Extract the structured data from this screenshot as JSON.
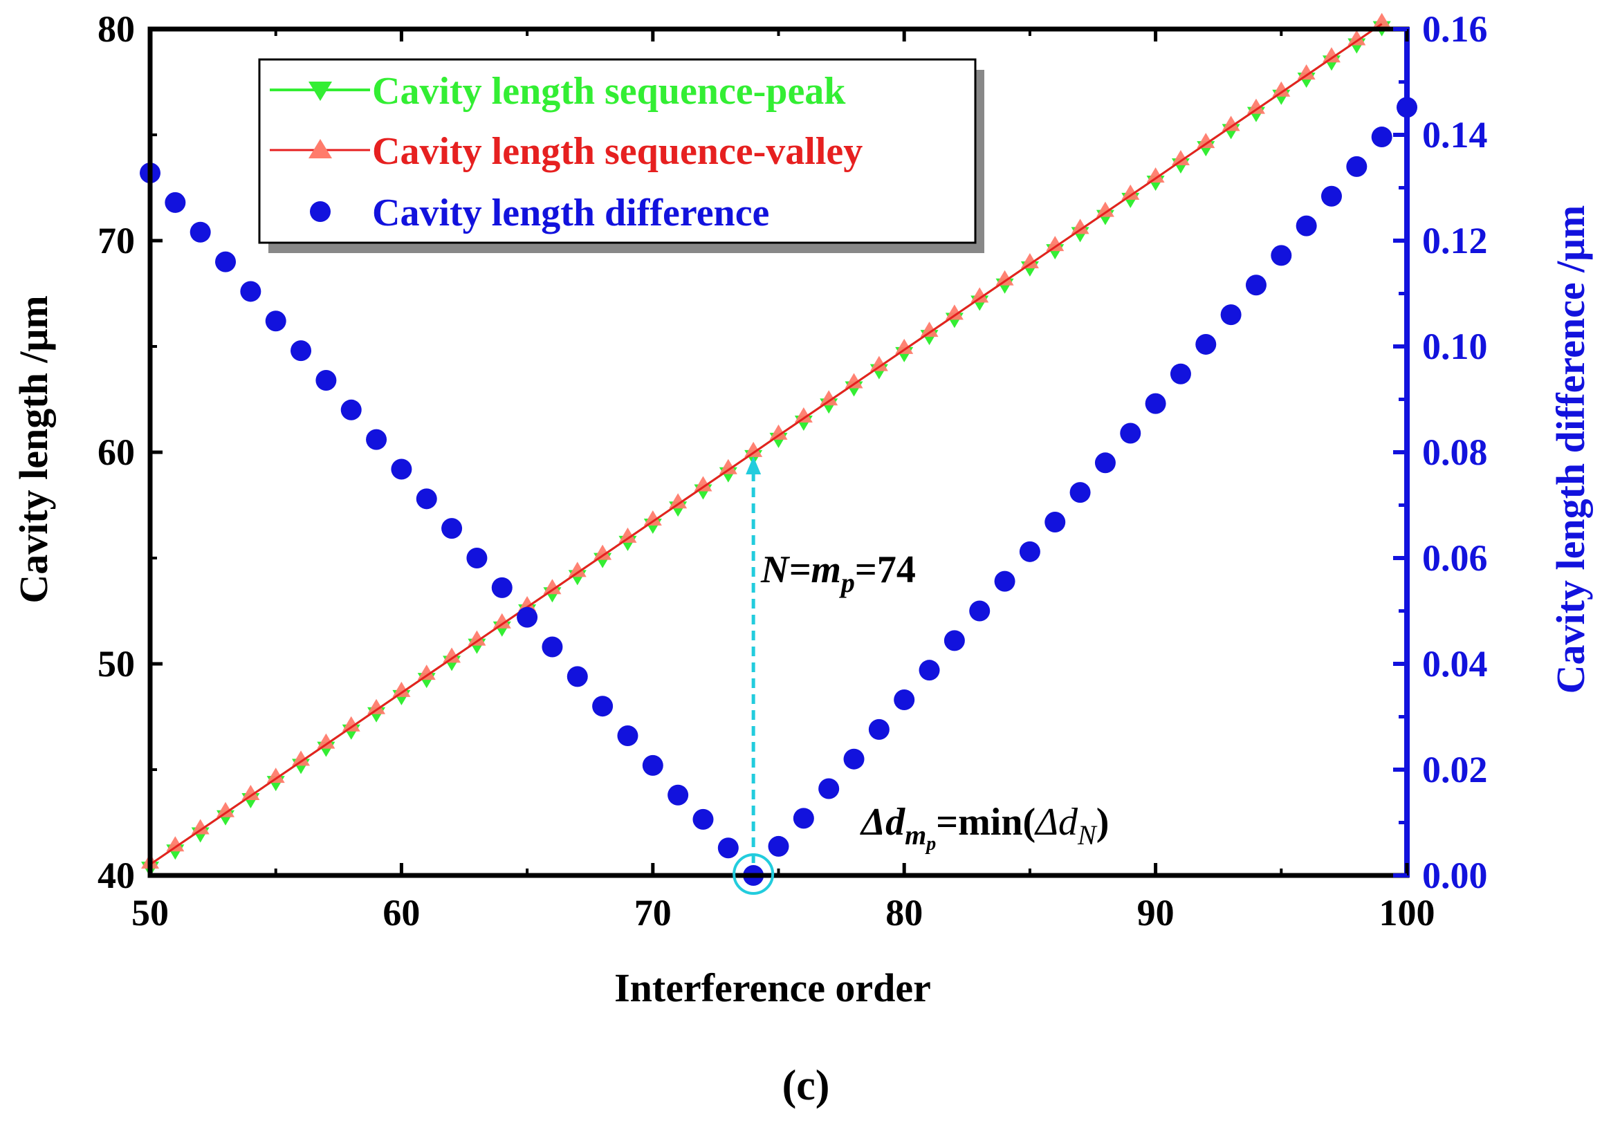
{
  "chart_data": {
    "type": "line",
    "xlabel": "Interference order",
    "ylabel": "Cavity length /μm",
    "y2label": "Cavity length difference /μm",
    "xlim": [
      50,
      100
    ],
    "ylim": [
      40,
      80
    ],
    "y2lim": [
      0,
      0.16
    ],
    "x_ticks": [
      "50",
      "60",
      "70",
      "80",
      "90",
      "100"
    ],
    "y_ticks": [
      "40",
      "50",
      "60",
      "70",
      "80"
    ],
    "y2_ticks": [
      "0.00",
      "0.02",
      "0.04",
      "0.06",
      "0.08",
      "0.10",
      "0.12",
      "0.14",
      "0.16"
    ],
    "legend_position": "top-left",
    "colors": {
      "peak": "#33ee33",
      "valley": "#e62020",
      "valley_marker": "#ff7b6b",
      "difference": "#1212dd",
      "right_axis": "#1212dd",
      "annotation": "#22ccdd"
    },
    "series": [
      {
        "name": "Cavity length sequence-peak",
        "axis": "left",
        "style": "line+down-triangle",
        "x": [
          50,
          51,
          52,
          53,
          54,
          55,
          56,
          57,
          58,
          59,
          60,
          61,
          62,
          63,
          64,
          65,
          66,
          67,
          68,
          69,
          70,
          71,
          72,
          73,
          74,
          75,
          76,
          77,
          78,
          79,
          80,
          81,
          82,
          83,
          84,
          85,
          86,
          87,
          88,
          89,
          90,
          91,
          92,
          93,
          94,
          95,
          96,
          97,
          98,
          99
        ],
        "values": [
          40.52,
          41.33,
          42.14,
          42.95,
          43.76,
          44.57,
          45.38,
          46.19,
          47.0,
          47.82,
          48.63,
          49.44,
          50.25,
          51.06,
          51.87,
          52.68,
          53.49,
          54.3,
          55.11,
          55.92,
          56.73,
          57.54,
          58.35,
          59.16,
          59.97,
          60.79,
          61.6,
          62.41,
          63.22,
          64.03,
          64.84,
          65.65,
          66.46,
          67.27,
          68.08,
          68.89,
          69.7,
          70.51,
          71.32,
          72.13,
          72.94,
          73.76,
          74.57,
          75.38,
          76.19,
          77.0,
          77.81,
          78.62,
          79.43,
          80.24
        ]
      },
      {
        "name": "Cavity length sequence-valley",
        "axis": "left",
        "style": "line+up-triangle",
        "x": [
          50,
          51,
          52,
          53,
          54,
          55,
          56,
          57,
          58,
          59,
          60,
          61,
          62,
          63,
          64,
          65,
          66,
          67,
          68,
          69,
          70,
          71,
          72,
          73,
          74,
          75,
          76,
          77,
          78,
          79,
          80,
          81,
          82,
          83,
          84,
          85,
          86,
          87,
          88,
          89,
          90,
          91,
          92,
          93,
          94,
          95,
          96,
          97,
          98,
          99
        ],
        "values": [
          40.52,
          41.33,
          42.14,
          42.95,
          43.76,
          44.57,
          45.38,
          46.19,
          47.0,
          47.82,
          48.63,
          49.44,
          50.25,
          51.06,
          51.87,
          52.68,
          53.49,
          54.3,
          55.11,
          55.92,
          56.73,
          57.54,
          58.35,
          59.16,
          59.97,
          60.79,
          61.6,
          62.41,
          63.22,
          64.03,
          64.84,
          65.65,
          66.46,
          67.27,
          68.08,
          68.89,
          69.7,
          70.51,
          71.32,
          72.13,
          72.94,
          73.76,
          74.57,
          75.38,
          76.19,
          77.0,
          77.81,
          78.62,
          79.43,
          80.24
        ]
      },
      {
        "name": "Cavity length difference",
        "axis": "right",
        "style": "circle",
        "x": [
          50,
          51,
          52,
          53,
          54,
          55,
          56,
          57,
          58,
          59,
          60,
          61,
          62,
          63,
          64,
          65,
          66,
          67,
          68,
          69,
          70,
          71,
          72,
          73,
          74,
          75,
          76,
          77,
          78,
          79,
          80,
          81,
          82,
          83,
          84,
          85,
          86,
          87,
          88,
          89,
          90,
          91,
          92,
          93,
          94,
          95,
          96,
          97,
          98,
          99,
          100
        ],
        "values": [
          0.1328,
          0.1272,
          0.1216,
          0.116,
          0.1104,
          0.1048,
          0.0992,
          0.0936,
          0.088,
          0.0824,
          0.0768,
          0.0712,
          0.0656,
          0.06,
          0.0544,
          0.0488,
          0.0432,
          0.0376,
          0.032,
          0.0264,
          0.0208,
          0.0152,
          0.0106,
          0.0052,
          0.0,
          0.0055,
          0.0108,
          0.0164,
          0.022,
          0.0276,
          0.0332,
          0.0388,
          0.0444,
          0.05,
          0.0556,
          0.0612,
          0.0668,
          0.0724,
          0.078,
          0.0836,
          0.0892,
          0.0948,
          0.1004,
          0.106,
          0.1116,
          0.1172,
          0.1228,
          0.1284,
          0.134,
          0.1396,
          0.1452
        ]
      }
    ],
    "annotations": {
      "arrow_label_prefix": "N=m",
      "arrow_label_sub": "p",
      "arrow_label_suffix": "=74",
      "arrow_x": 74,
      "arrow_from_y2": 0.0,
      "arrow_to_y": 60.0,
      "min_label_delta": "Δd",
      "min_label_m": "m",
      "min_label_p": "p",
      "min_label_eq": "=min(",
      "min_label_delta2": "Δd",
      "min_label_n": "N",
      "min_label_close": ")"
    },
    "panel_label": "(c)"
  }
}
